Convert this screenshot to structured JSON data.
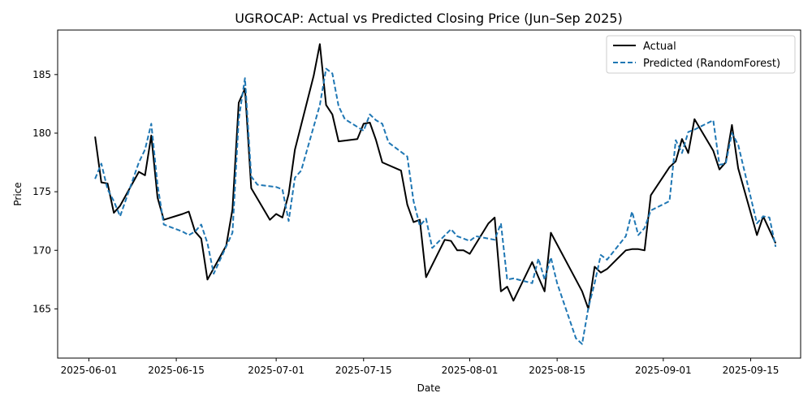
{
  "chart_data": {
    "type": "line",
    "title": "UGROCAP: Actual vs Predicted Closing Price (Jun–Sep 2025)",
    "xlabel": "Date",
    "ylabel": "Price",
    "x_tick_labels": [
      "2025-06-01",
      "2025-06-15",
      "2025-07-01",
      "2025-07-15",
      "2025-08-01",
      "2025-08-15",
      "2025-09-01",
      "2025-09-15"
    ],
    "x_tick_dates": [
      "2025-06-01",
      "2025-06-15",
      "2025-07-01",
      "2025-07-15",
      "2025-08-01",
      "2025-08-15",
      "2025-09-01",
      "2025-09-15"
    ],
    "y_ticks": [
      165,
      170,
      175,
      180,
      185
    ],
    "xlim": [
      "2025-05-27",
      "2025-09-23"
    ],
    "ylim": [
      160.8,
      188.8
    ],
    "grid": false,
    "legend_position": "top-right",
    "series": [
      {
        "name": "Actual",
        "color": "#000000",
        "style": "solid",
        "points": [
          [
            "2025-06-02",
            179.7
          ],
          [
            "2025-06-03",
            175.8
          ],
          [
            "2025-06-04",
            175.7
          ],
          [
            "2025-06-05",
            173.2
          ],
          [
            "2025-06-06",
            173.8
          ],
          [
            "2025-06-09",
            176.7
          ],
          [
            "2025-06-10",
            176.4
          ],
          [
            "2025-06-11",
            179.8
          ],
          [
            "2025-06-12",
            174.5
          ],
          [
            "2025-06-13",
            172.6
          ],
          [
            "2025-06-16",
            173.1
          ],
          [
            "2025-06-17",
            173.3
          ],
          [
            "2025-06-18",
            171.6
          ],
          [
            "2025-06-19",
            171.0
          ],
          [
            "2025-06-20",
            167.5
          ],
          [
            "2025-06-23",
            170.4
          ],
          [
            "2025-06-24",
            173.5
          ],
          [
            "2025-06-25",
            182.6
          ],
          [
            "2025-06-26",
            183.8
          ],
          [
            "2025-06-27",
            175.3
          ],
          [
            "2025-06-30",
            172.6
          ],
          [
            "2025-07-01",
            173.1
          ],
          [
            "2025-07-02",
            172.8
          ],
          [
            "2025-07-03",
            174.8
          ],
          [
            "2025-07-04",
            178.6
          ],
          [
            "2025-07-07",
            184.9
          ],
          [
            "2025-07-08",
            187.6
          ],
          [
            "2025-07-09",
            182.4
          ],
          [
            "2025-07-10",
            181.6
          ],
          [
            "2025-07-11",
            179.3
          ],
          [
            "2025-07-14",
            179.5
          ],
          [
            "2025-07-15",
            180.8
          ],
          [
            "2025-07-16",
            180.9
          ],
          [
            "2025-07-17",
            179.4
          ],
          [
            "2025-07-18",
            177.5
          ],
          [
            "2025-07-21",
            176.8
          ],
          [
            "2025-07-22",
            173.9
          ],
          [
            "2025-07-23",
            172.4
          ],
          [
            "2025-07-24",
            172.6
          ],
          [
            "2025-07-25",
            167.7
          ],
          [
            "2025-07-28",
            170.9
          ],
          [
            "2025-07-29",
            170.8
          ],
          [
            "2025-07-30",
            170.0
          ],
          [
            "2025-07-31",
            170.0
          ],
          [
            "2025-08-01",
            169.7
          ],
          [
            "2025-08-04",
            172.3
          ],
          [
            "2025-08-05",
            172.8
          ],
          [
            "2025-08-06",
            166.5
          ],
          [
            "2025-08-07",
            166.9
          ],
          [
            "2025-08-08",
            165.7
          ],
          [
            "2025-08-11",
            169.0
          ],
          [
            "2025-08-12",
            167.7
          ],
          [
            "2025-08-13",
            166.5
          ],
          [
            "2025-08-14",
            171.5
          ],
          [
            "2025-08-18",
            167.5
          ],
          [
            "2025-08-19",
            166.5
          ],
          [
            "2025-08-20",
            165.0
          ],
          [
            "2025-08-21",
            168.6
          ],
          [
            "2025-08-22",
            168.1
          ],
          [
            "2025-08-23",
            168.4
          ],
          [
            "2025-08-26",
            170.0
          ],
          [
            "2025-08-27",
            170.1
          ],
          [
            "2025-08-28",
            170.1
          ],
          [
            "2025-08-29",
            170.0
          ],
          [
            "2025-08-30",
            174.7
          ],
          [
            "2025-09-02",
            177.1
          ],
          [
            "2025-09-03",
            177.6
          ],
          [
            "2025-09-04",
            179.5
          ],
          [
            "2025-09-05",
            178.3
          ],
          [
            "2025-09-06",
            181.2
          ],
          [
            "2025-09-09",
            178.5
          ],
          [
            "2025-09-10",
            176.9
          ],
          [
            "2025-09-11",
            177.5
          ],
          [
            "2025-09-12",
            180.7
          ],
          [
            "2025-09-13",
            177.0
          ],
          [
            "2025-09-16",
            171.3
          ],
          [
            "2025-09-17",
            172.9
          ],
          [
            "2025-09-19",
            170.6
          ]
        ]
      },
      {
        "name": "Predicted (RandomForest)",
        "color": "#1f77b4",
        "style": "dashed",
        "points": [
          [
            "2025-06-02",
            176.1
          ],
          [
            "2025-06-03",
            177.4
          ],
          [
            "2025-06-04",
            175.2
          ],
          [
            "2025-06-05",
            174.2
          ],
          [
            "2025-06-06",
            172.9
          ],
          [
            "2025-06-09",
            177.5
          ],
          [
            "2025-06-10",
            178.6
          ],
          [
            "2025-06-11",
            180.8
          ],
          [
            "2025-06-12",
            175.6
          ],
          [
            "2025-06-13",
            172.2
          ],
          [
            "2025-06-16",
            171.6
          ],
          [
            "2025-06-17",
            171.3
          ],
          [
            "2025-06-18",
            171.6
          ],
          [
            "2025-06-19",
            172.2
          ],
          [
            "2025-06-20",
            170.6
          ],
          [
            "2025-06-21",
            168.0
          ],
          [
            "2025-06-24",
            171.5
          ],
          [
            "2025-06-25",
            181.2
          ],
          [
            "2025-06-26",
            184.7
          ],
          [
            "2025-06-27",
            176.3
          ],
          [
            "2025-06-28",
            175.6
          ],
          [
            "2025-07-01",
            175.4
          ],
          [
            "2025-07-02",
            175.2
          ],
          [
            "2025-07-03",
            172.5
          ],
          [
            "2025-07-04",
            176.2
          ],
          [
            "2025-07-05",
            176.8
          ],
          [
            "2025-07-08",
            182.4
          ],
          [
            "2025-07-09",
            185.5
          ],
          [
            "2025-07-10",
            185.1
          ],
          [
            "2025-07-11",
            182.3
          ],
          [
            "2025-07-12",
            181.2
          ],
          [
            "2025-07-15",
            180.2
          ],
          [
            "2025-07-16",
            181.6
          ],
          [
            "2025-07-17",
            181.1
          ],
          [
            "2025-07-18",
            180.8
          ],
          [
            "2025-07-19",
            179.2
          ],
          [
            "2025-07-22",
            178.0
          ],
          [
            "2025-07-23",
            174.2
          ],
          [
            "2025-07-24",
            172.1
          ],
          [
            "2025-07-25",
            172.7
          ],
          [
            "2025-07-26",
            170.2
          ],
          [
            "2025-07-29",
            171.8
          ],
          [
            "2025-07-30",
            171.2
          ],
          [
            "2025-07-31",
            171.0
          ],
          [
            "2025-08-01",
            170.8
          ],
          [
            "2025-08-02",
            171.2
          ],
          [
            "2025-08-05",
            170.9
          ],
          [
            "2025-08-06",
            172.3
          ],
          [
            "2025-08-07",
            167.5
          ],
          [
            "2025-08-08",
            167.6
          ],
          [
            "2025-08-11",
            167.2
          ],
          [
            "2025-08-12",
            169.3
          ],
          [
            "2025-08-13",
            167.5
          ],
          [
            "2025-08-14",
            169.4
          ],
          [
            "2025-08-15",
            167.2
          ],
          [
            "2025-08-18",
            162.5
          ],
          [
            "2025-08-19",
            162.0
          ],
          [
            "2025-08-20",
            165.1
          ],
          [
            "2025-08-21",
            167.2
          ],
          [
            "2025-08-22",
            169.6
          ],
          [
            "2025-08-23",
            169.2
          ],
          [
            "2025-08-26",
            171.2
          ],
          [
            "2025-08-27",
            173.3
          ],
          [
            "2025-08-28",
            171.3
          ],
          [
            "2025-08-29",
            171.9
          ],
          [
            "2025-08-30",
            173.4
          ],
          [
            "2025-09-02",
            174.2
          ],
          [
            "2025-09-03",
            179.4
          ],
          [
            "2025-09-04",
            178.3
          ],
          [
            "2025-09-05",
            180.1
          ],
          [
            "2025-09-06",
            180.3
          ],
          [
            "2025-09-09",
            181.1
          ],
          [
            "2025-09-10",
            177.3
          ],
          [
            "2025-09-11",
            177.4
          ],
          [
            "2025-09-12",
            180.0
          ],
          [
            "2025-09-13",
            179.0
          ],
          [
            "2025-09-16",
            172.3
          ],
          [
            "2025-09-17",
            172.9
          ],
          [
            "2025-09-18",
            172.8
          ],
          [
            "2025-09-19",
            170.3
          ]
        ]
      }
    ]
  }
}
